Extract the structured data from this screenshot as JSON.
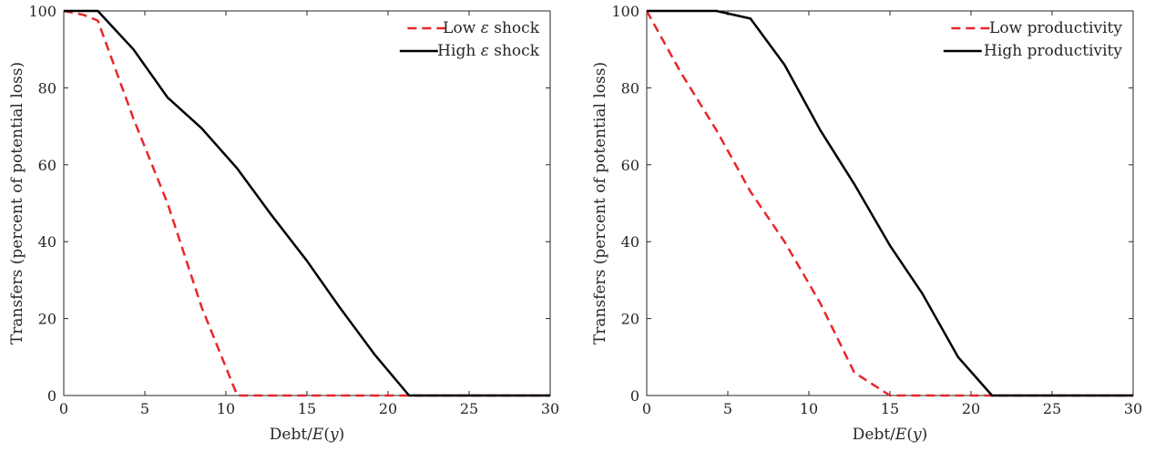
{
  "chart_data": [
    {
      "type": "line",
      "xlabel": "Debt/E(y)",
      "ylabel": "Transfers (percent of potential loss)",
      "xlim": [
        0,
        30
      ],
      "ylim": [
        0,
        100
      ],
      "xticks": [
        "0",
        "5",
        "10",
        "15",
        "20",
        "25",
        "30"
      ],
      "yticks": [
        "0",
        "20",
        "40",
        "60",
        "80",
        "100"
      ],
      "legend_position": "top-right",
      "grid": false,
      "series": [
        {
          "name": "Low ε shock",
          "style": "dashed",
          "color": "#e8262b",
          "x": [
            0,
            1.2,
            2.1,
            4.3,
            6.4,
            8.5,
            10.7,
            12.8,
            15,
            17,
            19.2,
            21.3,
            30
          ],
          "y": [
            100,
            99,
            97.5,
            72,
            50,
            23,
            0,
            0,
            0,
            0,
            0,
            0,
            0
          ]
        },
        {
          "name": "High ε shock",
          "style": "solid",
          "color": "#000000",
          "x": [
            0,
            2.1,
            4.3,
            6.4,
            8.5,
            10.7,
            12.8,
            15,
            17,
            19.2,
            21.3,
            30
          ],
          "y": [
            100,
            100,
            90,
            77.5,
            69.5,
            59,
            47,
            35,
            23,
            10.5,
            0,
            0
          ]
        }
      ]
    },
    {
      "type": "line",
      "xlabel": "Debt/E(y)",
      "ylabel": "Transfers (percent of potential loss)",
      "xlim": [
        0,
        30
      ],
      "ylim": [
        0,
        100
      ],
      "xticks": [
        "0",
        "5",
        "10",
        "15",
        "20",
        "25",
        "30"
      ],
      "yticks": [
        "0",
        "20",
        "40",
        "60",
        "80",
        "100"
      ],
      "legend_position": "top-right",
      "grid": false,
      "series": [
        {
          "name": "Low productivity",
          "style": "dashed",
          "color": "#e8262b",
          "x": [
            0,
            2.1,
            4.3,
            6.4,
            8.5,
            10.7,
            12.8,
            15,
            17,
            19.2,
            21.3,
            30
          ],
          "y": [
            100,
            84,
            69,
            53,
            40,
            24,
            6,
            0,
            0,
            0,
            0,
            0
          ]
        },
        {
          "name": "High productivity",
          "style": "solid",
          "color": "#000000",
          "x": [
            0,
            2.1,
            4.3,
            6.4,
            8.5,
            10.7,
            12.8,
            15,
            17,
            19.2,
            21.3,
            30
          ],
          "y": [
            100,
            100,
            100,
            98,
            86,
            69,
            55,
            39,
            26.5,
            10,
            0,
            0
          ]
        }
      ]
    }
  ]
}
